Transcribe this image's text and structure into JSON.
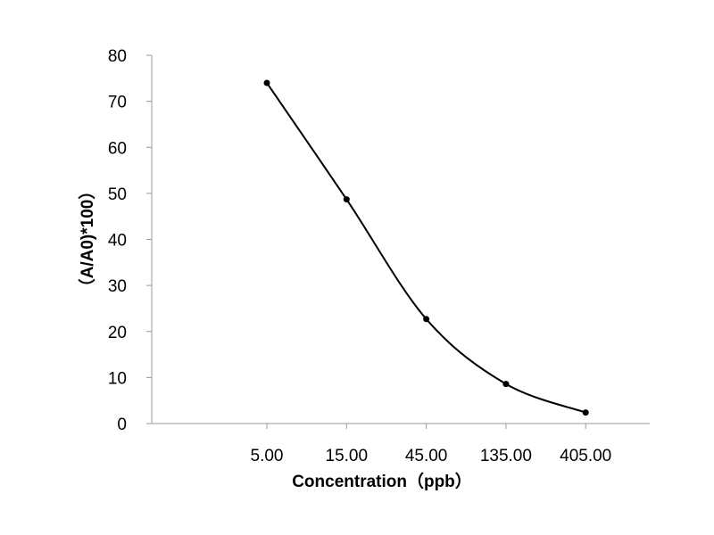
{
  "chart_data": {
    "type": "line",
    "xlabel": "Concentration（ppb）",
    "ylabel": "（A/A0)*100）",
    "x_categories": [
      "5.00",
      "15.00",
      "45.00",
      "135.00",
      "405.00"
    ],
    "x": [
      5,
      15,
      45,
      135,
      405
    ],
    "x_scale": "log",
    "values": [
      74,
      48.7,
      22.7,
      8.6,
      2.4
    ],
    "y_ticks": [
      "0",
      "10",
      "20",
      "30",
      "40",
      "50",
      "60",
      "70",
      "80"
    ],
    "ylim": [
      0,
      80
    ],
    "grid": false,
    "legend": "none",
    "smooth": true,
    "line_color": "#000000",
    "marker_color": "#000000",
    "axis_color": "#999999"
  }
}
